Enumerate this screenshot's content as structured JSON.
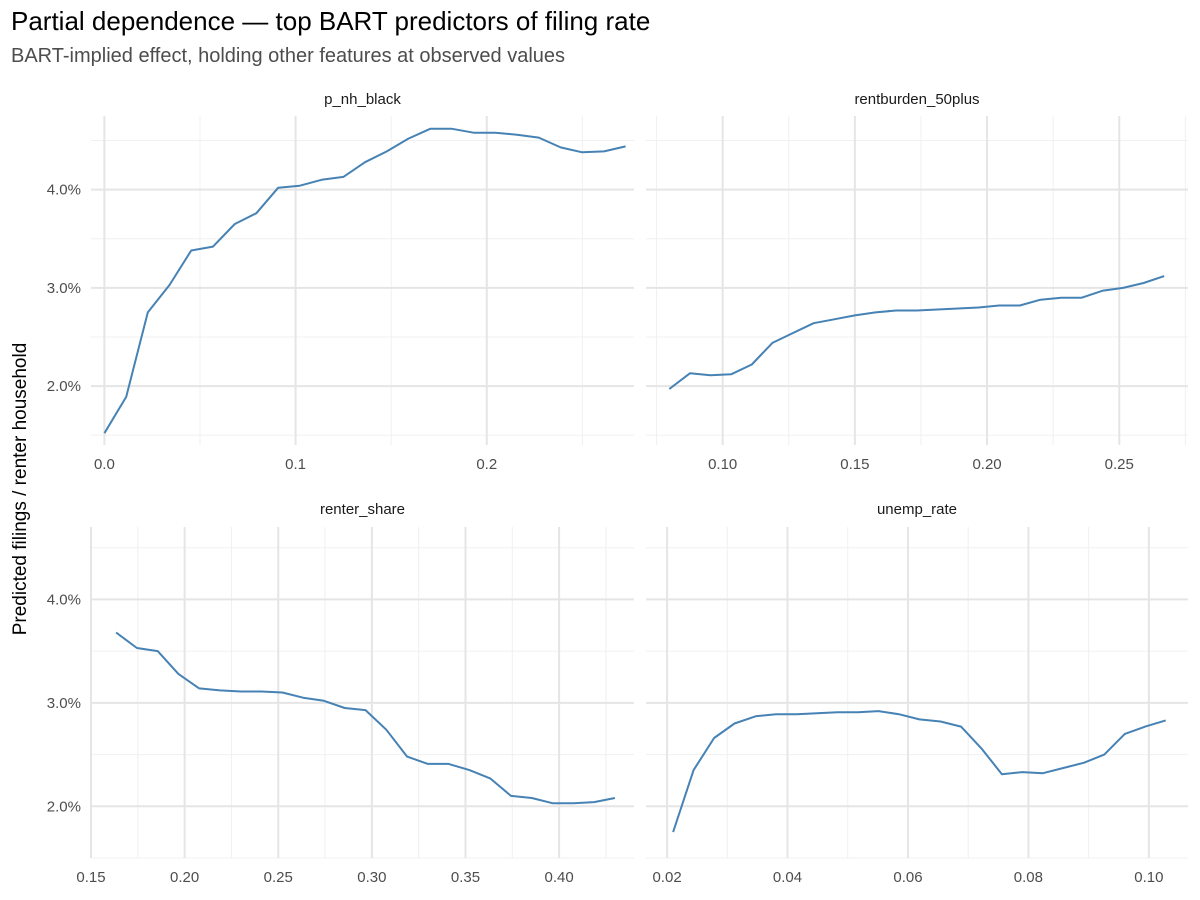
{
  "title": "Partial dependence — top BART predictors of filing rate",
  "subtitle": "BART-implied effect, holding other features at observed values",
  "ylabel": "Predicted filings / renter household",
  "line_color": "#4682b4",
  "chart_data": [
    {
      "type": "line",
      "panel": "p_nh_black",
      "xlim": [
        -0.007,
        0.277
      ],
      "ylim": [
        1.4,
        4.75
      ],
      "x_ticks": [
        0.0,
        0.1,
        0.2
      ],
      "x_tick_labels": [
        "0.0",
        "0.1",
        "0.2"
      ],
      "y_ticks": [
        2.0,
        3.0,
        4.0
      ],
      "y_tick_labels": [
        "2.0%",
        "3.0%",
        "4.0%"
      ],
      "x": [
        0.0,
        0.0114,
        0.0227,
        0.0341,
        0.0454,
        0.0568,
        0.0682,
        0.0795,
        0.0909,
        0.1022,
        0.1136,
        0.125,
        0.1363,
        0.1477,
        0.159,
        0.1704,
        0.1818,
        0.1931,
        0.2045,
        0.2158,
        0.2272,
        0.2386,
        0.2499,
        0.2613,
        0.2726
      ],
      "y": [
        1.52,
        1.89,
        2.75,
        3.03,
        3.38,
        3.42,
        3.65,
        3.76,
        4.02,
        4.04,
        4.1,
        4.13,
        4.28,
        4.39,
        4.52,
        4.62,
        4.62,
        4.58,
        4.58,
        4.56,
        4.53,
        4.43,
        4.38,
        4.39,
        4.44
      ]
    },
    {
      "type": "line",
      "panel": "rentburden_50plus",
      "xlim": [
        0.071,
        0.276
      ],
      "ylim": [
        1.4,
        4.75
      ],
      "x_ticks": [
        0.1,
        0.15,
        0.2,
        0.25
      ],
      "x_tick_labels": [
        "0.10",
        "0.15",
        "0.20",
        "0.25"
      ],
      "y_ticks": [
        2.0,
        3.0,
        4.0
      ],
      "y_tick_labels": [
        "2.0%",
        "3.0%",
        "4.0%"
      ],
      "x": [
        0.0798,
        0.0876,
        0.0954,
        0.1032,
        0.111,
        0.1188,
        0.1266,
        0.1344,
        0.1422,
        0.15,
        0.1578,
        0.1656,
        0.1734,
        0.1812,
        0.189,
        0.1968,
        0.2046,
        0.2124,
        0.2202,
        0.228,
        0.2358,
        0.2436,
        0.2514,
        0.2592,
        0.267
      ],
      "y": [
        1.97,
        2.13,
        2.11,
        2.12,
        2.22,
        2.44,
        2.54,
        2.64,
        2.68,
        2.72,
        2.75,
        2.77,
        2.77,
        2.78,
        2.79,
        2.8,
        2.82,
        2.82,
        2.88,
        2.9,
        2.9,
        2.97,
        3.0,
        3.05,
        3.12
      ]
    },
    {
      "type": "line",
      "panel": "renter_share",
      "xlim": [
        0.15,
        0.44
      ],
      "ylim": [
        1.5,
        4.7
      ],
      "x_ticks": [
        0.15,
        0.2,
        0.25,
        0.3,
        0.35,
        0.4
      ],
      "x_tick_labels": [
        "0.15",
        "0.20",
        "0.25",
        "0.30",
        "0.35",
        "0.40"
      ],
      "y_ticks": [
        2.0,
        3.0,
        4.0
      ],
      "y_tick_labels": [
        "2.0%",
        "3.0%",
        "4.0%"
      ],
      "x": [
        0.1634,
        0.1745,
        0.1856,
        0.1967,
        0.2078,
        0.2189,
        0.23,
        0.2411,
        0.2522,
        0.2633,
        0.2744,
        0.2855,
        0.2966,
        0.3077,
        0.3188,
        0.3299,
        0.341,
        0.3521,
        0.3632,
        0.3743,
        0.3854,
        0.3965,
        0.4076,
        0.4187,
        0.4298
      ],
      "y": [
        3.68,
        3.53,
        3.5,
        3.28,
        3.14,
        3.12,
        3.11,
        3.11,
        3.1,
        3.05,
        3.02,
        2.95,
        2.93,
        2.74,
        2.48,
        2.41,
        2.41,
        2.35,
        2.27,
        2.1,
        2.08,
        2.03,
        2.03,
        2.04,
        2.08
      ]
    },
    {
      "type": "line",
      "panel": "unemp_rate",
      "xlim": [
        0.0165,
        0.1065
      ],
      "ylim": [
        1.5,
        4.7
      ],
      "x_ticks": [
        0.02,
        0.04,
        0.06,
        0.08,
        0.1
      ],
      "x_tick_labels": [
        "0.02",
        "0.04",
        "0.06",
        "0.08",
        "0.10"
      ],
      "y_ticks": [
        2.0,
        3.0,
        4.0
      ],
      "y_tick_labels": [
        "2.0%",
        "3.0%",
        "4.0%"
      ],
      "x": [
        0.021,
        0.0244,
        0.0278,
        0.0312,
        0.0347,
        0.0381,
        0.0415,
        0.0449,
        0.0483,
        0.0517,
        0.0551,
        0.0585,
        0.0619,
        0.0654,
        0.0688,
        0.0722,
        0.0756,
        0.079,
        0.0824,
        0.0858,
        0.0892,
        0.0926,
        0.096,
        0.0994,
        0.1028
      ],
      "y": [
        1.75,
        2.35,
        2.66,
        2.8,
        2.87,
        2.89,
        2.89,
        2.9,
        2.91,
        2.91,
        2.92,
        2.89,
        2.84,
        2.82,
        2.77,
        2.56,
        2.31,
        2.33,
        2.32,
        2.37,
        2.42,
        2.5,
        2.7,
        2.77,
        2.83
      ]
    }
  ]
}
